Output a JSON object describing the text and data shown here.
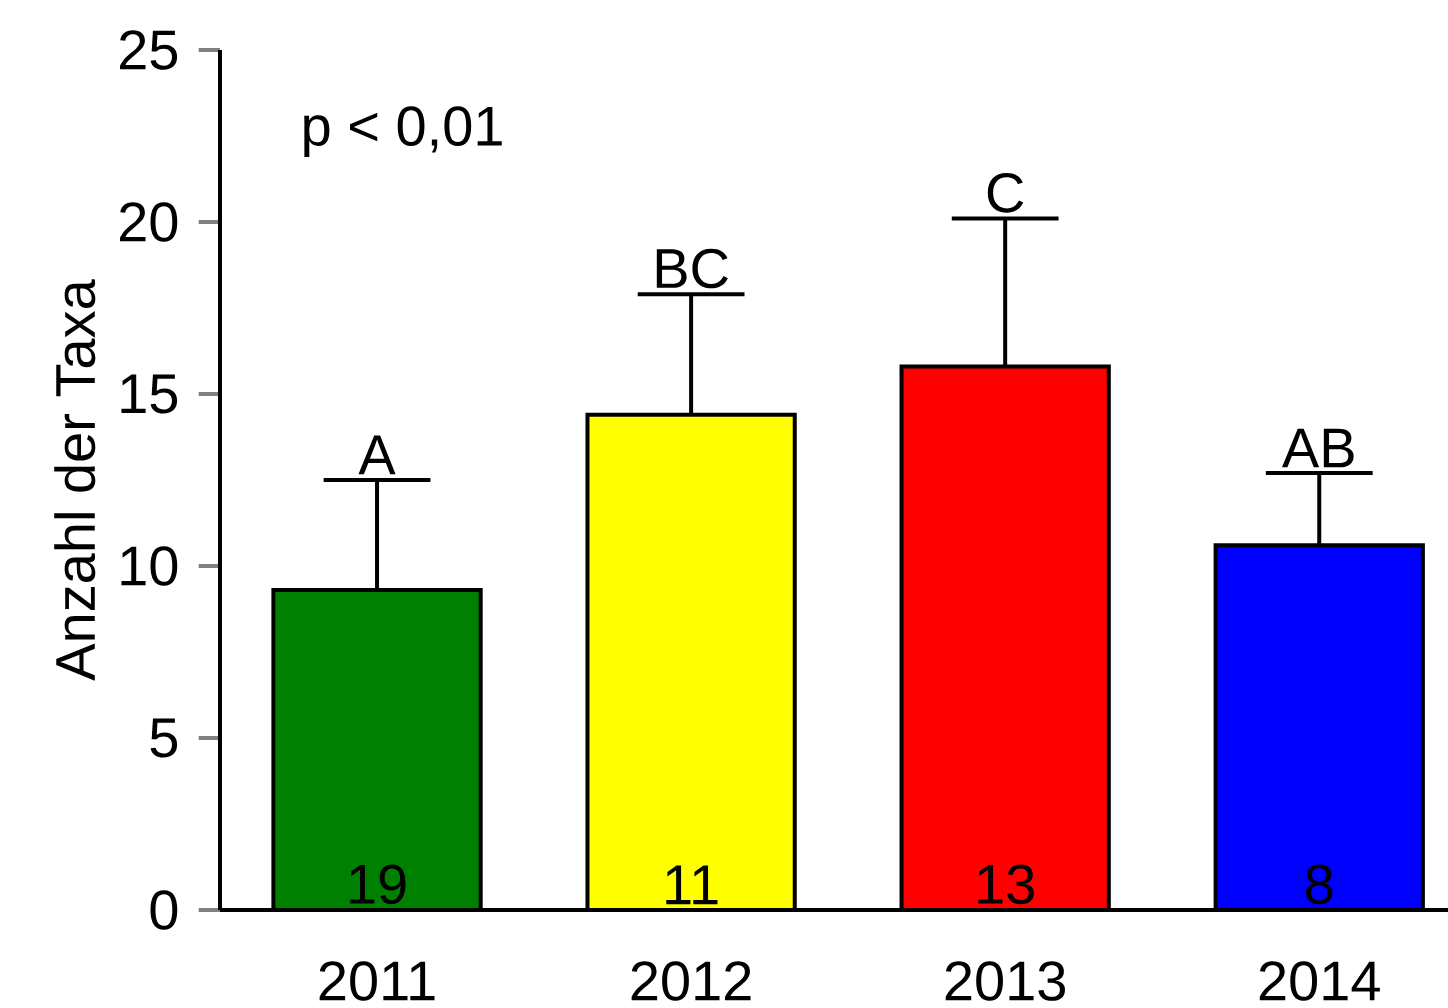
{
  "chart_data": {
    "type": "bar",
    "ylabel": "Anzahl der Taxa",
    "categories": [
      "2011",
      "2012",
      "2013",
      "2014"
    ],
    "values": [
      9.3,
      14.4,
      15.8,
      10.6
    ],
    "colors": [
      "#008000",
      "#ffff00",
      "#ff0000",
      "#0000ff"
    ],
    "errors": [
      [
        9.3,
        12.5
      ],
      [
        14.4,
        17.9
      ],
      [
        15.8,
        20.1
      ],
      [
        10.6,
        12.7
      ]
    ],
    "ylim": [
      0,
      25
    ],
    "yticks": [
      0,
      5,
      10,
      15,
      20,
      25
    ],
    "annotations": [
      "p < 0,01",
      {
        "text": "A",
        "x": "2011",
        "y": 12.5
      },
      {
        "text": "BC",
        "x": "2012",
        "y": 17.9
      },
      {
        "text": "C",
        "x": "2013",
        "y": 20.1
      },
      {
        "text": "AB",
        "x": "2014",
        "y": 12.7
      },
      {
        "text": "19",
        "x": "2011",
        "y": 0
      },
      {
        "text": "11",
        "x": "2012",
        "y": 0
      },
      {
        "text": "13",
        "x": "2013",
        "y": 0
      },
      {
        "text": "8",
        "x": "2014",
        "y": 0
      }
    ]
  }
}
